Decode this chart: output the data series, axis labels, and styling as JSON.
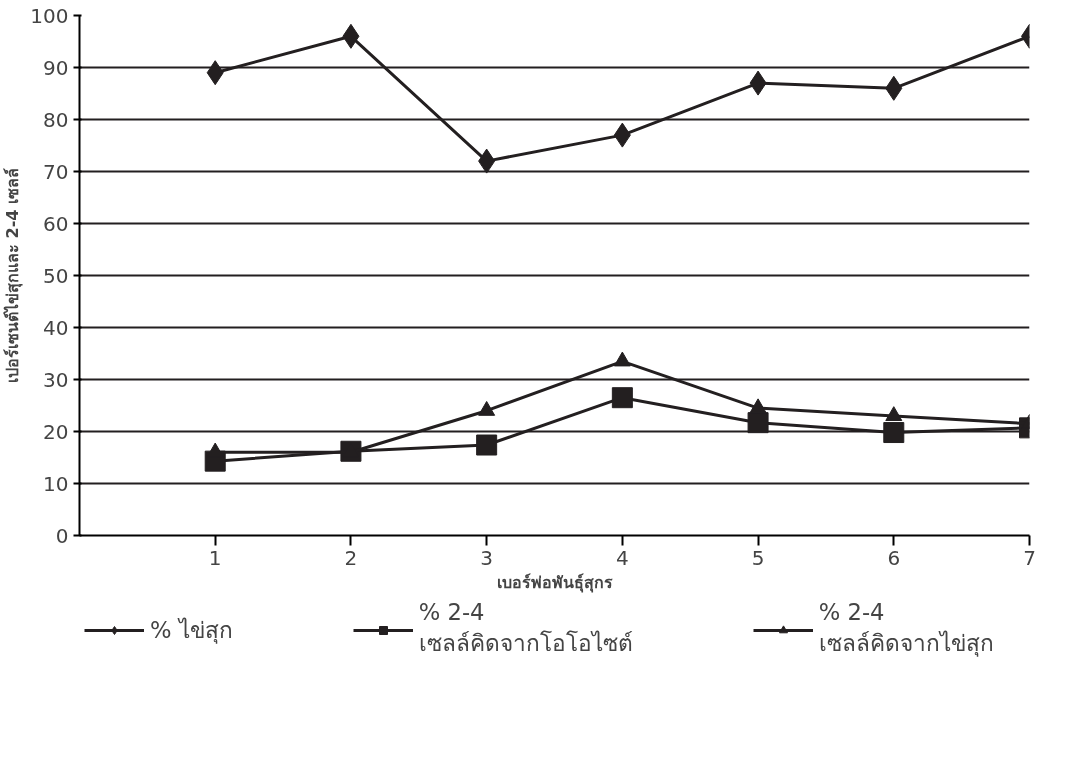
{
  "chart_data": {
    "type": "line",
    "xlabel": "เบอร์พ่อพันธุ์สุกร",
    "ylabel": "เปอร์เซนต์ไข่สุกและ 2-4 เซลล์",
    "x": [
      1,
      2,
      3,
      4,
      5,
      6,
      7
    ],
    "series": [
      {
        "name": "% ไข่สุก",
        "color": "#231f20",
        "marker": "diamond",
        "values": [
          89,
          96,
          72,
          77,
          87,
          86,
          96
        ]
      },
      {
        "name": "% 2-4\nเซลล์คิดจากโอโอไซต์",
        "color": "#231f20",
        "marker": "square",
        "values": [
          14.3,
          16.2,
          17.4,
          26.5,
          21.7,
          19.8,
          20.7
        ]
      },
      {
        "name": "% 2-4\nเซลล์คิดจากไข่สุก",
        "color": "#231f20",
        "marker": "triangle",
        "values": [
          16,
          16,
          24,
          33.5,
          24.5,
          23,
          21.5
        ]
      }
    ],
    "xlim": [
      0,
      7
    ],
    "xticks": [
      1,
      2,
      3,
      4,
      5,
      6,
      7
    ],
    "ylim": [
      0,
      100
    ],
    "yticks": [
      0,
      10,
      20,
      30,
      40,
      50,
      60,
      70,
      80,
      90,
      100
    ],
    "grid": "y",
    "legend": "bottom",
    "line_style": "solid"
  }
}
